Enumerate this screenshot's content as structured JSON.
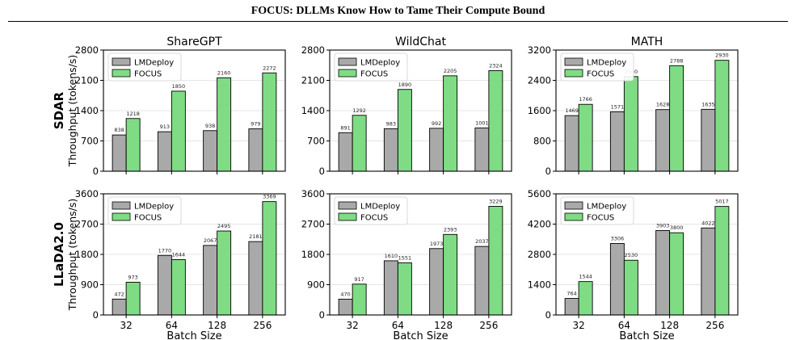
{
  "page_title": "FOCUS: DLLMs Know How to Tame Their Compute Bound",
  "x_axis_label": "Batch Size",
  "y_axis_label": "Throughput (tokens/s)",
  "row_labels": [
    "SDAR",
    "LLaDA2.0"
  ],
  "colors": {
    "LMDeploy": "#a9a9a9",
    "FOCUS": "#7fdc84"
  },
  "chart_data": [
    {
      "type": "bar",
      "row": "SDAR",
      "title": "ShareGPT",
      "categories": [
        "32",
        "64",
        "128",
        "256"
      ],
      "ylim": [
        0,
        2800
      ],
      "yticks": [
        "0",
        "700",
        "1400",
        "2100",
        "2800"
      ],
      "series": [
        {
          "name": "LMDeploy",
          "values": [
            838,
            913,
            938,
            979
          ]
        },
        {
          "name": "FOCUS",
          "values": [
            1218,
            1850,
            2160,
            2272
          ]
        }
      ],
      "legend": "top-left",
      "grid": "y"
    },
    {
      "type": "bar",
      "row": "SDAR",
      "title": "WildChat",
      "categories": [
        "32",
        "64",
        "128",
        "256"
      ],
      "ylim": [
        0,
        2800
      ],
      "yticks": [
        "0",
        "700",
        "1400",
        "2100",
        "2800"
      ],
      "series": [
        {
          "name": "LMDeploy",
          "values": [
            891,
            983,
            992,
            1001
          ]
        },
        {
          "name": "FOCUS",
          "values": [
            1292,
            1890,
            2205,
            2324
          ]
        }
      ],
      "legend": "top-left",
      "grid": "y"
    },
    {
      "type": "bar",
      "row": "SDAR",
      "title": "MATH",
      "categories": [
        "32",
        "64",
        "128",
        "256"
      ],
      "ylim": [
        0,
        3200
      ],
      "yticks": [
        "0",
        "800",
        "1600",
        "2400",
        "3200"
      ],
      "series": [
        {
          "name": "LMDeploy",
          "values": [
            1469,
            1571,
            1628,
            1635
          ]
        },
        {
          "name": "FOCUS",
          "values": [
            1766,
            2500,
            2788,
            2930
          ]
        }
      ],
      "legend": "top-left",
      "grid": "y"
    },
    {
      "type": "bar",
      "row": "LLaDA2.0",
      "title": "",
      "categories": [
        "32",
        "64",
        "128",
        "256"
      ],
      "ylim": [
        0,
        3600
      ],
      "yticks": [
        "0",
        "900",
        "1800",
        "2700",
        "3600"
      ],
      "series": [
        {
          "name": "LMDeploy",
          "values": [
            472,
            1770,
            2067,
            2181
          ]
        },
        {
          "name": "FOCUS",
          "values": [
            973,
            1644,
            2495,
            3369
          ]
        }
      ],
      "legend": "top-left",
      "grid": "y"
    },
    {
      "type": "bar",
      "row": "LLaDA2.0",
      "title": "",
      "categories": [
        "32",
        "64",
        "128",
        "256"
      ],
      "ylim": [
        0,
        3600
      ],
      "yticks": [
        "0",
        "900",
        "1800",
        "2700",
        "3600"
      ],
      "series": [
        {
          "name": "LMDeploy",
          "values": [
            470,
            1610,
            1973,
            2037
          ]
        },
        {
          "name": "FOCUS",
          "values": [
            917,
            1551,
            2393,
            3229
          ]
        }
      ],
      "legend": "top-left",
      "grid": "y"
    },
    {
      "type": "bar",
      "row": "LLaDA2.0",
      "title": "",
      "categories": [
        "32",
        "64",
        "128",
        "256"
      ],
      "ylim": [
        0,
        5600
      ],
      "yticks": [
        "0",
        "1400",
        "2800",
        "4200",
        "5600"
      ],
      "series": [
        {
          "name": "LMDeploy",
          "values": [
            764,
            3306,
            3903,
            4022
          ]
        },
        {
          "name": "FOCUS",
          "values": [
            1544,
            2530,
            3800,
            5017
          ]
        }
      ],
      "legend": "top-left",
      "grid": "y"
    }
  ]
}
